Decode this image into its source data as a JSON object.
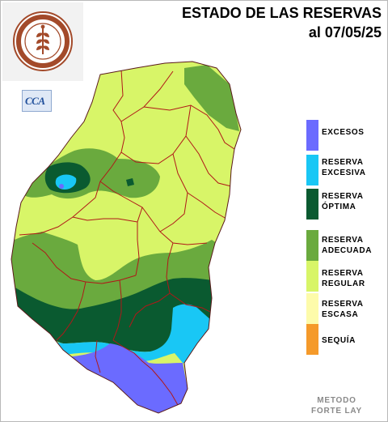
{
  "header": {
    "title_line1": "ESTADO DE LAS RESERVAS",
    "title_line2": "al 07/05/25"
  },
  "logo": {
    "text_top": "BOLSA DE CEREALES DE ENTRE RÍOS",
    "year": "1976",
    "icon": "wheat-seal-icon"
  },
  "badge": {
    "text": "CCA"
  },
  "legend": {
    "items": [
      {
        "label": "EXCESOS",
        "color": "#6b6bff"
      },
      {
        "label": "RESERVA\nEXCESIVA",
        "color": "#19c7f5"
      },
      {
        "label": "RESERVA\nÓPTIMA",
        "color": "#0a5a30"
      },
      {
        "label": "RESERVA\nADECUADA",
        "color": "#6aaa3e"
      },
      {
        "label": "RESERVA\nREGULAR",
        "color": "#d8f568"
      },
      {
        "label": "RESERVA\nESCASA",
        "color": "#fdfbaa"
      },
      {
        "label": "SEQUÍA",
        "color": "#f59a2a"
      }
    ]
  },
  "footer": {
    "method_line1": "METODO",
    "method_line2": "FORTE LAY"
  },
  "map": {
    "border_color": "#b01818",
    "outline_color": "#5a1a1a"
  }
}
